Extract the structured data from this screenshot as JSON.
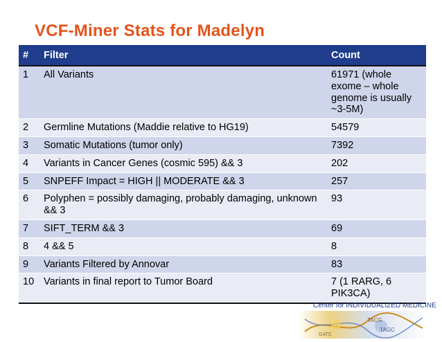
{
  "title": "VCF-Miner Stats for Madelyn",
  "table": {
    "headers": {
      "num": "#",
      "filter": "Filter",
      "count": "Count"
    },
    "rows": [
      {
        "num": "1",
        "filter": "All Variants",
        "count": "61971 (whole exome – whole genome is usually ~3-5M)"
      },
      {
        "num": "2",
        "filter": "Germline Mutations (Maddie relative to HG19)",
        "count": "54579"
      },
      {
        "num": "3",
        "filter": "Somatic Mutations (tumor only)",
        "count": "7392"
      },
      {
        "num": "4",
        "filter": "Variants in Cancer Genes (cosmic 595) && 3",
        "count": "202"
      },
      {
        "num": "5",
        "filter": "SNPEFF Impact = HIGH || MODERATE && 3",
        "count": "257"
      },
      {
        "num": "6",
        "filter": "Polyphen = possibly damaging, probably damaging, unknown && 3",
        "count": "93"
      },
      {
        "num": "7",
        "filter": "SIFT_TERM && 3",
        "count": "69"
      },
      {
        "num": "8",
        "filter": "4 && 5",
        "count": "8"
      },
      {
        "num": "9",
        "filter": "Variants Filtered by Annovar",
        "count": "83"
      },
      {
        "num": "10",
        "filter": "Variants in final report to Tumor Board",
        "count": "7 (1 RARG, 6 PIK3CA)"
      }
    ]
  },
  "footer": {
    "label": "Center for INDIVIDUALIZED MEDICINE",
    "icon": "dna-sequence-art-icon"
  },
  "colors": {
    "title": "#e4541c",
    "header_bg": "#1f3d8c",
    "row_odd": "#cfd5ea",
    "row_even": "#e9ebf5"
  }
}
